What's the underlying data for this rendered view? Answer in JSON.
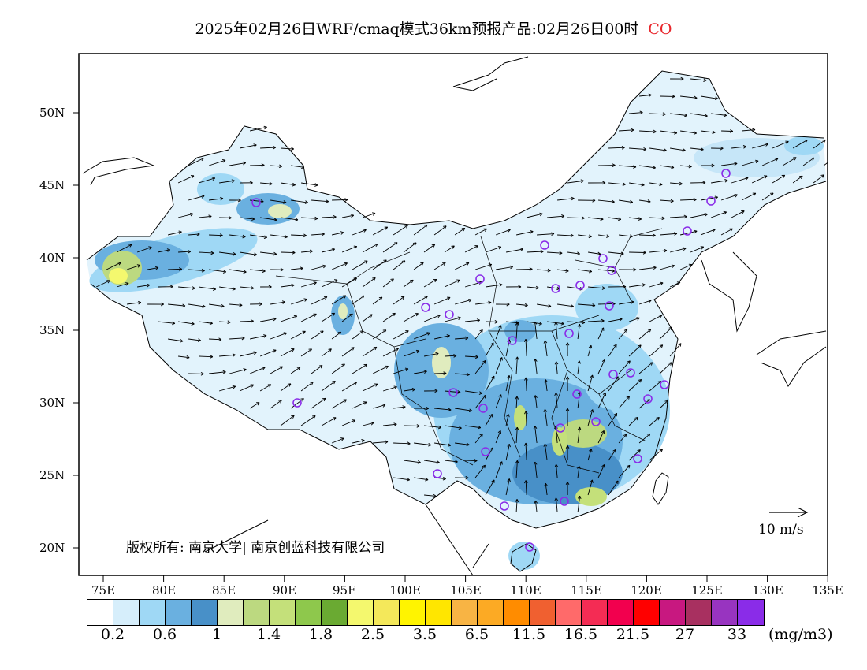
{
  "title": {
    "main": "2025年02月26日WRF/cmaq模式36km预报产品:02月26日00时",
    "species": "CO",
    "species_color": "#e8262b"
  },
  "axes": {
    "lat_ticks": [
      "50N",
      "45N",
      "40N",
      "35N",
      "30N",
      "25N",
      "20N"
    ],
    "lon_ticks": [
      "75E",
      "80E",
      "85E",
      "90E",
      "95E",
      "100E",
      "105E",
      "110E",
      "115E",
      "120E",
      "125E",
      "130E",
      "135E"
    ]
  },
  "copyright": "版权所有: 南京大学| 南京创蓝科技有限公司",
  "wind_scale": {
    "label": "10 m/s"
  },
  "legend": {
    "colors": [
      "#ffffff",
      "#d6eefb",
      "#9fd8f5",
      "#6ab0e0",
      "#4890c8",
      "#e0ecbe",
      "#bcd980",
      "#c4e07a",
      "#8ec84c",
      "#6aaa32",
      "#f4f86e",
      "#f4e85a",
      "#fff400",
      "#ffe600",
      "#f8b444",
      "#fcaa24",
      "#ff8c00",
      "#f06030",
      "#ff6a6a",
      "#f42c54",
      "#f2004e",
      "#ff0000",
      "#c81880",
      "#a83060",
      "#9834c0",
      "#8a2ce8"
    ],
    "labels": [
      "0.2",
      "0.6",
      "1",
      "1.4",
      "1.8",
      "2.5",
      "3.5",
      "6.5",
      "11.5",
      "16.5",
      "21.5",
      "27",
      "33"
    ],
    "unit": "(mg/m3)"
  }
}
